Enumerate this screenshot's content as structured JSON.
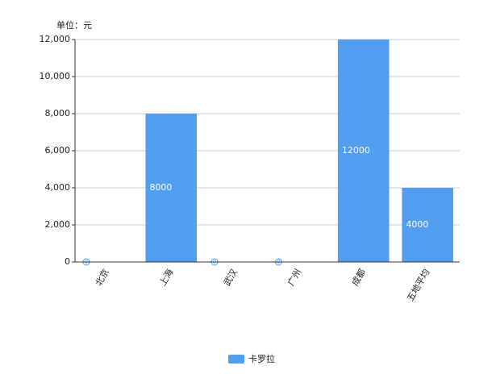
{
  "chart_data": {
    "type": "bar",
    "unit_label": "单位：元",
    "categories": [
      "北京",
      "上海",
      "武汉",
      "广州",
      "成都",
      "五地平均"
    ],
    "series": [
      {
        "name": "卡罗拉",
        "color": "#519ef0",
        "values": [
          0,
          8000,
          0,
          0,
          12000,
          4000
        ]
      }
    ],
    "ylim": [
      0,
      12000
    ],
    "yticks": [
      0,
      {
        "value": 2000,
        "label": "2,000"
      },
      {
        "value": 4000,
        "label": "4,000"
      },
      {
        "value": 6000,
        "label": "6,000"
      },
      {
        "value": 8000,
        "label": "8,000"
      },
      {
        "value": 10000,
        "label": "10,000"
      },
      {
        "value": 12000,
        "label": "12,000"
      }
    ],
    "grid": true
  }
}
